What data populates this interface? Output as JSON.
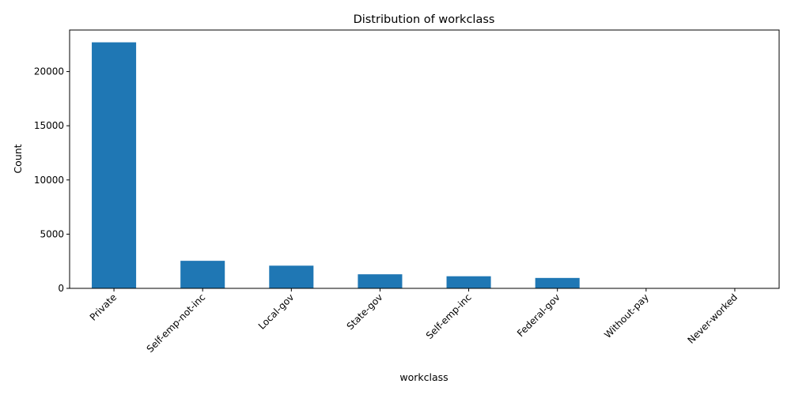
{
  "chart_data": {
    "type": "bar",
    "title": "Distribution of workclass",
    "xlabel": "workclass",
    "ylabel": "Count",
    "categories": [
      "Private",
      "Self-emp-not-inc",
      "Local-gov",
      "State-gov",
      "Self-emp-inc",
      "Federal-gov",
      "Without-pay",
      "Never-worked"
    ],
    "values": [
      22696,
      2541,
      2093,
      1298,
      1116,
      960,
      14,
      7
    ],
    "yticks": [
      0,
      5000,
      10000,
      15000,
      20000
    ],
    "ylim": [
      0,
      23831
    ],
    "grid": false,
    "legend": "none",
    "bar_color": "#1f77b4",
    "xtick_rotation": 45
  }
}
